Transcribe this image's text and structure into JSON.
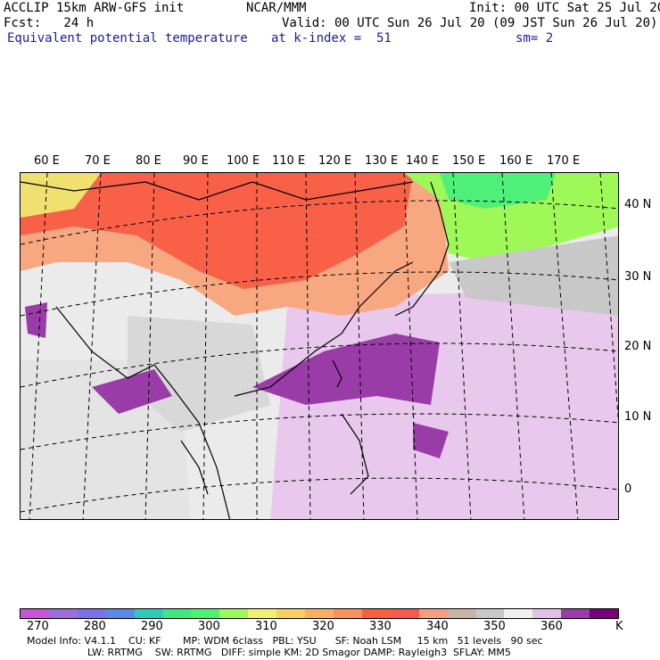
{
  "header": {
    "line1_left": "ACCLIP 15km ARW-GFS init",
    "line1_center": "NCAR/MMM",
    "line1_right": "Init: 00 UTC Sat 25 Jul 20",
    "line2_left": "Fcst:   24 h",
    "line2_right": "Valid: 00 UTC Sun 26 Jul 20 (09 JST Sun 26 Jul 20)",
    "line3_left": "Equivalent potential temperature",
    "line3_center": "at k-index =  51",
    "line3_right": "sm= 2"
  },
  "lon_labels": [
    "60 E",
    "70 E",
    "80 E",
    "90 E",
    "100 E",
    "110 E",
    "120 E",
    "130 E",
    "140 E",
    "150 E",
    "160 E",
    "170 E"
  ],
  "lat_labels": [
    "40 N",
    "30 N",
    "20 N",
    "10 N",
    "0"
  ],
  "colorbar": {
    "colors": [
      "#c855d6",
      "#9a6fdc",
      "#7a72e8",
      "#5a8ae8",
      "#2ccab8",
      "#3de882",
      "#4ef070",
      "#9ef858",
      "#f0f070",
      "#f8d060",
      "#f8b060",
      "#f89060",
      "#f86040",
      "#f85a50",
      "#f0a080",
      "#c8b4a8",
      "#c8c8c8",
      "#f0f0f0",
      "#e0c0e8",
      "#9a3ca8",
      "#7a007a"
    ],
    "labels": [
      "270",
      "280",
      "290",
      "300",
      "310",
      "320",
      "330",
      "340",
      "350",
      "360"
    ],
    "unit": "K"
  },
  "footer": {
    "line1": "Model Info: V4.1.1    CU: KF       MP: WDM 6class   PBL: YSU      SF: Noah LSM     15 km   51 levels   90 sec",
    "line2": "LW: RRTMG    SW: RRTMG   DIFF: simple KM: 2D Smagor DAMP: Rayleigh3  SFLAY: MM5"
  }
}
